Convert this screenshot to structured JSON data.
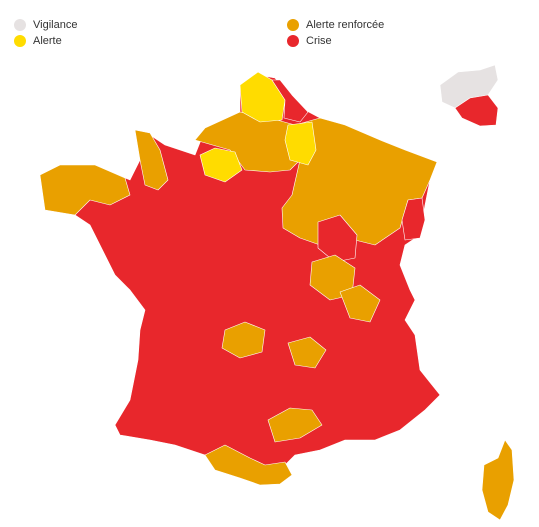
{
  "legend": [
    {
      "label": "Vigilance",
      "color": "#e6e2e2"
    },
    {
      "label": "Alerte",
      "color": "#ffdc00"
    },
    {
      "label": "Alerte renforcée",
      "color": "#e9a000"
    },
    {
      "label": "Crise",
      "color": "#e8272c"
    }
  ]
}
